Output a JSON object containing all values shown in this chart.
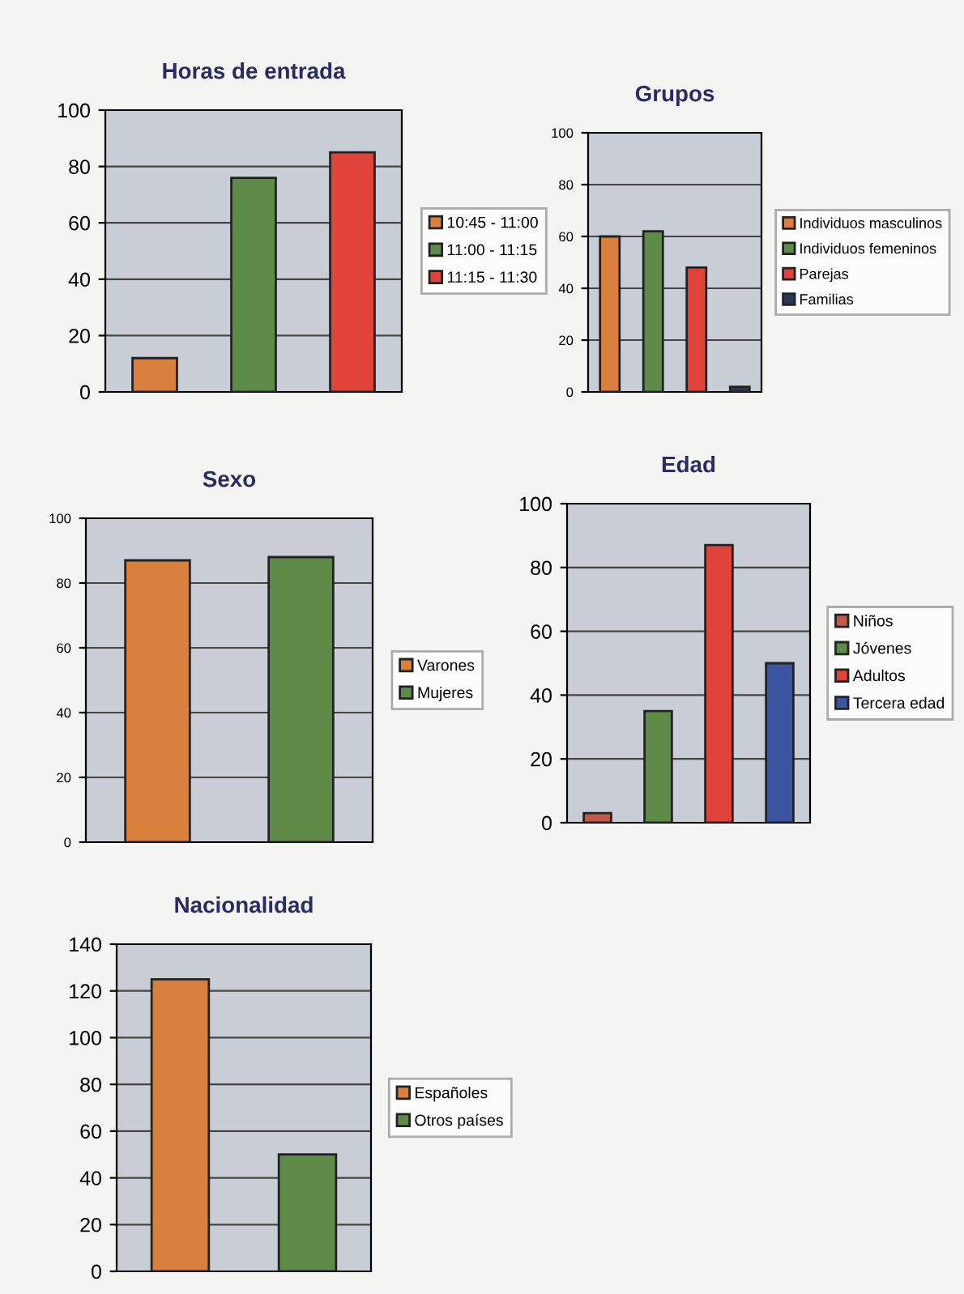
{
  "chart_data": [
    {
      "type": "bar",
      "title": "Horas de entrada",
      "categories": [
        null,
        null,
        null
      ],
      "ylim": [
        0,
        100
      ],
      "yticks": [
        0,
        20,
        40,
        60,
        80,
        100
      ],
      "grid": "y",
      "legend": "right",
      "tick_labels": "y",
      "series": [
        {
          "name": "10:45 - 11:00",
          "color": "#d9803f",
          "values": [
            12,
            null,
            null
          ]
        },
        {
          "name": "11:00 - 11:15",
          "color": "#5e8c48",
          "values": [
            null,
            76,
            null
          ]
        },
        {
          "name": "11:15 - 11:30",
          "color": "#e0433a",
          "values": [
            null,
            null,
            85
          ]
        }
      ]
    },
    {
      "type": "bar",
      "title": "Grupos",
      "categories": [
        null,
        null,
        null,
        null
      ],
      "ylim": [
        0,
        100
      ],
      "yticks": [
        0,
        20,
        40,
        60,
        80,
        100
      ],
      "grid": "y",
      "legend": "right",
      "tick_labels": "y",
      "series": [
        {
          "name": "Individuos masculinos",
          "color": "#d9803f",
          "values": [
            60,
            null,
            null,
            null
          ]
        },
        {
          "name": "Individuos femeninos",
          "color": "#5e8c48",
          "values": [
            null,
            62,
            null,
            null
          ]
        },
        {
          "name": "Parejas",
          "color": "#e0433a",
          "values": [
            null,
            null,
            48,
            null
          ]
        },
        {
          "name": "Familias",
          "color": "#2e3550",
          "values": [
            null,
            null,
            null,
            2
          ]
        }
      ]
    },
    {
      "type": "bar",
      "title": "Sexo",
      "categories": [
        null,
        null
      ],
      "ylim": [
        0,
        100
      ],
      "yticks": [
        0,
        20,
        40,
        60,
        80,
        100
      ],
      "grid": "y",
      "legend": "right",
      "tick_labels": "y",
      "series": [
        {
          "name": "Varones",
          "color": "#d9803f",
          "values": [
            87,
            null
          ]
        },
        {
          "name": "Mujeres",
          "color": "#5e8c48",
          "values": [
            null,
            88
          ]
        }
      ]
    },
    {
      "type": "bar",
      "title": "Edad",
      "categories": [
        null,
        null,
        null,
        null
      ],
      "ylim": [
        0,
        100
      ],
      "yticks": [
        0,
        20,
        40,
        60,
        80,
        100
      ],
      "grid": "y",
      "legend": "right",
      "tick_labels": "y",
      "series": [
        {
          "name": "Niños",
          "color": "#c25a4a",
          "values": [
            3,
            null,
            null,
            null
          ]
        },
        {
          "name": "Jóvenes",
          "color": "#5e8c48",
          "values": [
            null,
            35,
            null,
            null
          ]
        },
        {
          "name": "Adultos",
          "color": "#e0433a",
          "values": [
            null,
            null,
            87,
            null
          ]
        },
        {
          "name": "Tercera edad",
          "color": "#3b55a0",
          "values": [
            null,
            null,
            null,
            50
          ]
        }
      ]
    },
    {
      "type": "bar",
      "title": "Nacionalidad",
      "categories": [
        null,
        null
      ],
      "ylim": [
        0,
        140
      ],
      "yticks": [
        0,
        20,
        40,
        60,
        80,
        100,
        120,
        140
      ],
      "grid": "y",
      "legend": "right",
      "tick_labels": "y",
      "series": [
        {
          "name": "Españoles",
          "color": "#d9803f",
          "values": [
            125,
            null
          ]
        },
        {
          "name": "Otros países",
          "color": "#5e8c48",
          "values": [
            null,
            50
          ]
        }
      ]
    }
  ]
}
